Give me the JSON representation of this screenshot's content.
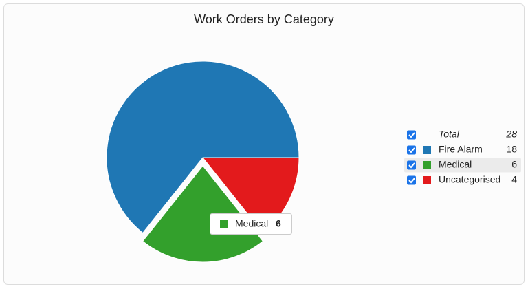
{
  "chart_data": {
    "type": "pie",
    "title": "Work Orders by Category",
    "total": {
      "label": "Total",
      "value": 28
    },
    "series": [
      {
        "name": "Fire Alarm",
        "color": "#1f77b4",
        "values": [
          18
        ]
      },
      {
        "name": "Medical",
        "color": "#33a02c",
        "values": [
          6
        ]
      },
      {
        "name": "Uncategorised",
        "color": "#e31a1c",
        "values": [
          4
        ]
      }
    ]
  }
}
